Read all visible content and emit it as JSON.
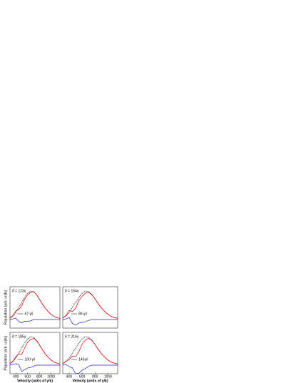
{
  "chart_data": [
    {
      "type": "line",
      "label": "δ = 123γ",
      "bracket_label": "67 γ/i",
      "y_label": "Population (arb. units)",
      "x": [
        300,
        350,
        400,
        450,
        500,
        550,
        600,
        650,
        700,
        750,
        800,
        850,
        900,
        950,
        1000,
        1050,
        1100,
        1150
      ],
      "xlim": [
        300,
        1150
      ],
      "ylim": [
        -0.3,
        1.15
      ],
      "series": [
        {
          "color": "#000000",
          "values": [
            0.05,
            0.12,
            0.25,
            0.42,
            0.6,
            0.78,
            0.92,
            1.0,
            0.98,
            0.88,
            0.72,
            0.55,
            0.4,
            0.28,
            0.18,
            0.11,
            0.07,
            0.04
          ]
        },
        {
          "color": "#e00000",
          "values": [
            0.05,
            0.14,
            0.3,
            0.35,
            0.48,
            0.72,
            0.86,
            0.95,
            0.98,
            0.88,
            0.72,
            0.55,
            0.4,
            0.28,
            0.18,
            0.11,
            0.07,
            0.04
          ]
        },
        {
          "color": "#2020d0",
          "values": [
            0,
            0.02,
            0.05,
            -0.07,
            -0.12,
            -0.06,
            -0.06,
            -0.05,
            0,
            0,
            0,
            0,
            0,
            0,
            0,
            0,
            0,
            0
          ]
        }
      ]
    },
    {
      "type": "line",
      "label": "δ = 154γ",
      "bracket_label": "86 γ/i",
      "x": [
        300,
        350,
        400,
        450,
        500,
        550,
        600,
        650,
        700,
        750,
        800,
        850,
        900,
        950,
        1000,
        1050,
        1100,
        1150
      ],
      "xlim": [
        300,
        1150
      ],
      "ylim": [
        -0.3,
        1.15
      ],
      "series": [
        {
          "color": "#000000",
          "values": [
            0.05,
            0.12,
            0.25,
            0.42,
            0.6,
            0.78,
            0.92,
            1.0,
            0.98,
            0.88,
            0.72,
            0.55,
            0.4,
            0.28,
            0.18,
            0.11,
            0.07,
            0.04
          ]
        },
        {
          "color": "#e00000",
          "values": [
            0.05,
            0.14,
            0.32,
            0.28,
            0.4,
            0.66,
            0.82,
            0.92,
            0.95,
            0.87,
            0.72,
            0.55,
            0.4,
            0.28,
            0.18,
            0.11,
            0.07,
            0.04
          ]
        },
        {
          "color": "#2020d0",
          "values": [
            0,
            0.02,
            0.07,
            -0.14,
            -0.2,
            -0.12,
            -0.1,
            -0.08,
            -0.03,
            0,
            0,
            0,
            0,
            0,
            0,
            0,
            0,
            0
          ]
        }
      ]
    },
    {
      "type": "line",
      "label": "δ = 185γ",
      "bracket_label": "100 γ/i",
      "y_label": "Population (arb. units)",
      "x_label": "Velocity (units of γ/k)",
      "x": [
        300,
        350,
        400,
        450,
        500,
        550,
        600,
        650,
        700,
        750,
        800,
        850,
        900,
        950,
        1000,
        1050,
        1100,
        1150
      ],
      "xlim": [
        300,
        1150
      ],
      "ylim": [
        -0.3,
        1.15
      ],
      "xticks": [
        400,
        600,
        800,
        1000
      ],
      "series": [
        {
          "color": "#000000",
          "values": [
            0.05,
            0.12,
            0.25,
            0.42,
            0.6,
            0.78,
            0.92,
            1.0,
            0.98,
            0.88,
            0.72,
            0.55,
            0.4,
            0.28,
            0.18,
            0.11,
            0.07,
            0.04
          ]
        },
        {
          "color": "#e00000",
          "values": [
            0.05,
            0.14,
            0.3,
            0.4,
            0.38,
            0.6,
            0.8,
            0.9,
            0.94,
            0.86,
            0.72,
            0.55,
            0.4,
            0.28,
            0.18,
            0.11,
            0.07,
            0.04
          ]
        },
        {
          "color": "#2020d0",
          "values": [
            0,
            0.02,
            0.05,
            0.02,
            -0.22,
            -0.16,
            -0.1,
            -0.08,
            -0.04,
            0,
            0,
            0,
            0,
            0,
            0,
            0,
            0,
            0
          ]
        }
      ]
    },
    {
      "type": "line",
      "label": "δ = 216γ",
      "bracket_label": "145γ/i",
      "x_label": "Velocity (units of γ/k)",
      "x": [
        300,
        350,
        400,
        450,
        500,
        550,
        600,
        650,
        700,
        750,
        800,
        850,
        900,
        950,
        1000,
        1050,
        1100,
        1150
      ],
      "xlim": [
        300,
        1150
      ],
      "ylim": [
        -0.3,
        1.15
      ],
      "xticks": [
        400,
        600,
        800,
        1000
      ],
      "series": [
        {
          "color": "#000000",
          "values": [
            0.05,
            0.12,
            0.25,
            0.42,
            0.6,
            0.78,
            0.92,
            1.0,
            0.98,
            0.88,
            0.72,
            0.55,
            0.4,
            0.28,
            0.18,
            0.11,
            0.07,
            0.04
          ]
        },
        {
          "color": "#e00000",
          "values": [
            0.05,
            0.14,
            0.2,
            0.32,
            0.3,
            0.48,
            0.74,
            0.88,
            0.94,
            0.87,
            0.72,
            0.55,
            0.4,
            0.28,
            0.18,
            0.11,
            0.07,
            0.04
          ]
        },
        {
          "color": "#2020d0",
          "values": [
            0,
            0.02,
            -0.05,
            -0.1,
            -0.3,
            -0.28,
            -0.18,
            -0.12,
            -0.04,
            0,
            0,
            0,
            0,
            0,
            0,
            0,
            0,
            0
          ]
        }
      ]
    }
  ]
}
